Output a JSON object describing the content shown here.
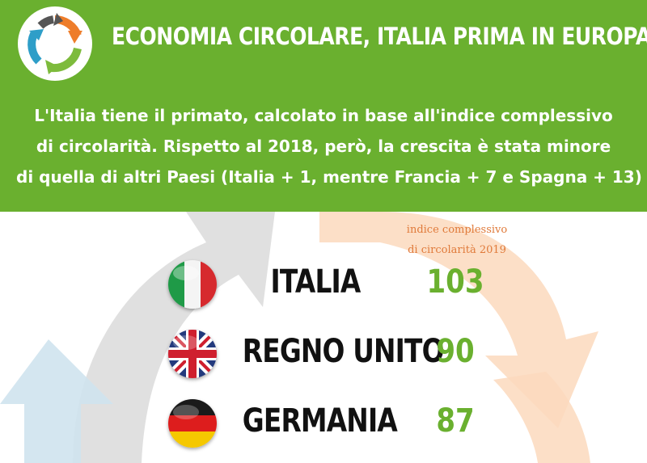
{
  "header": {
    "title": "ECONOMIA CIRCOLARE, ITALIA PRIMA IN EUROPA",
    "subtitle_lines": [
      "L'Italia tiene il primato, calcolato in base all'indice complessivo",
      "di circolarità. Rispetto al 2018, però, la crescita è stata minore",
      "di quella di altri Paesi (Italia + 1, mentre Francia + 7 e Spagna + 13)"
    ]
  },
  "icons": {
    "logo": "recycle-arrows-icon"
  },
  "colors": {
    "header_bg": "#6ab02f",
    "value_text": "#6ab02f",
    "column_label": "#e07a3a",
    "country_text": "#111111"
  },
  "chart_data": {
    "type": "table",
    "column_label_lines": [
      "indice complessivo",
      "di circolarità 2019"
    ],
    "rows": [
      {
        "country": "ITALIA",
        "value": 103,
        "flag": "italy-flag-icon"
      },
      {
        "country": "REGNO UNITO",
        "value": 90,
        "flag": "uk-flag-icon"
      },
      {
        "country": "GERMANIA",
        "value": 87,
        "flag": "germany-flag-icon"
      }
    ]
  }
}
